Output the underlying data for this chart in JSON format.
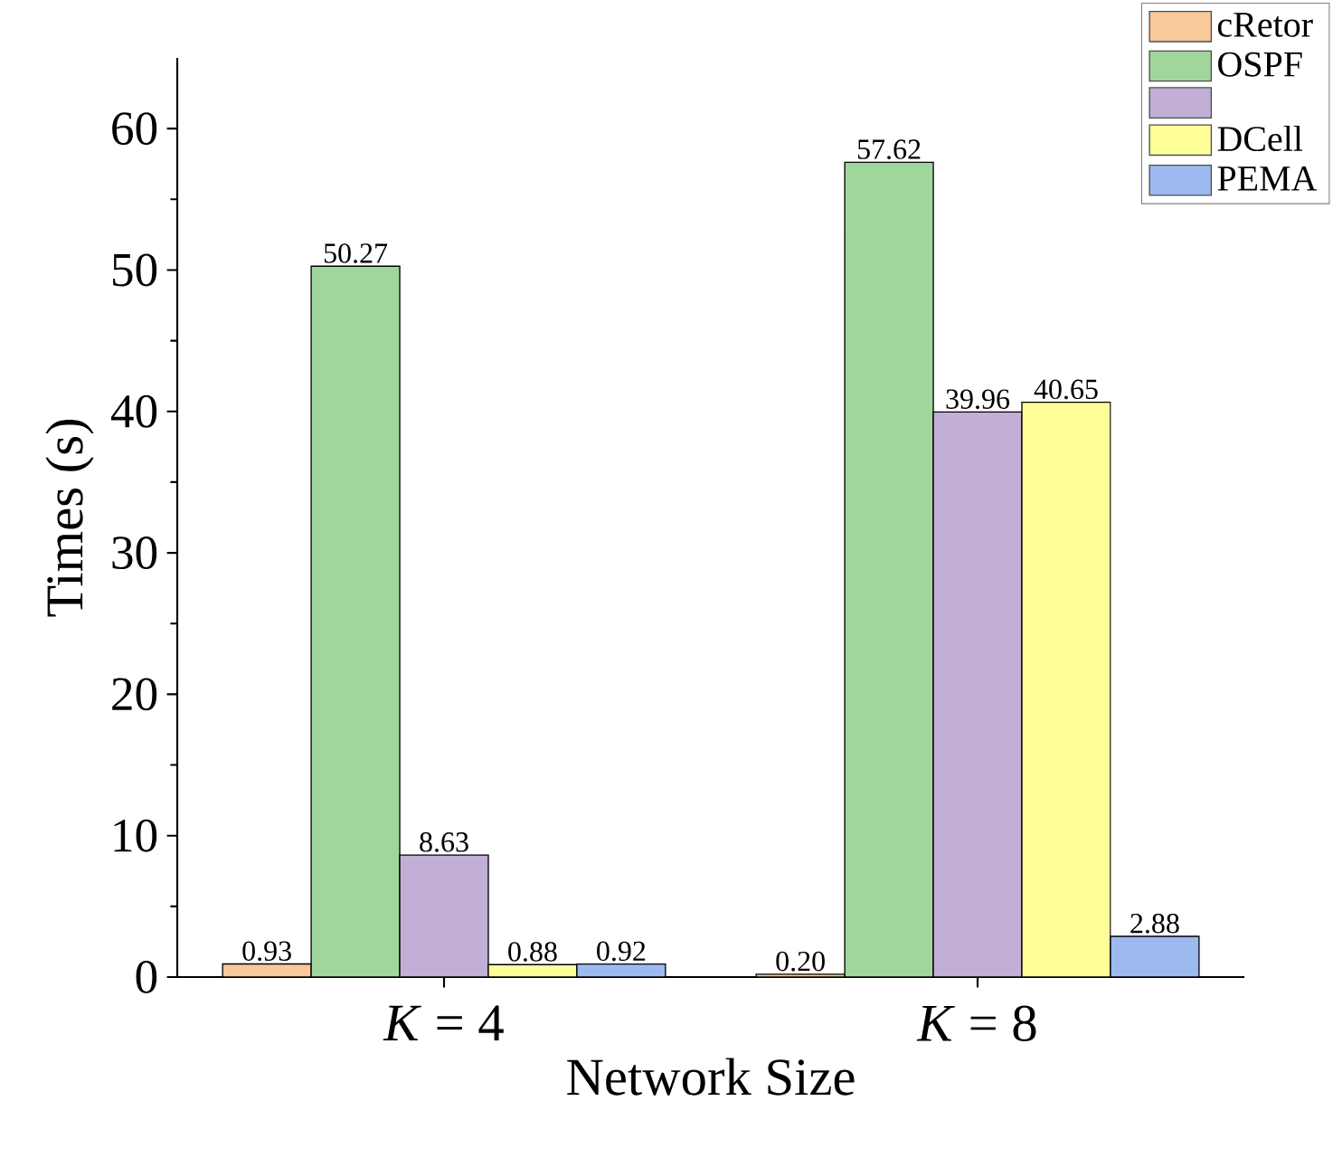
{
  "chart_data": {
    "type": "bar",
    "xlabel": "Network Size",
    "ylabel": "Times (s)",
    "categories": [
      "*K* = 4",
      "*K* = 8"
    ],
    "series": [
      {
        "name": "cRetor",
        "color": "#f9c89b",
        "values": [
          0.93,
          0.2
        ],
        "value_labels": [
          "0.93",
          "0.20"
        ]
      },
      {
        "name": "OSPF",
        "color": "#a0d69b",
        "values": [
          50.27,
          57.62
        ],
        "value_labels": [
          "50.27",
          "57.62"
        ]
      },
      {
        "color": "#c1afd6",
        "values": [
          8.63,
          39.96
        ],
        "value_labels": [
          "8.63",
          "39.96"
        ]
      },
      {
        "name": "DCell",
        "color": "#ffff99",
        "values": [
          0.88,
          40.65
        ],
        "value_labels": [
          "0.88",
          "40.65"
        ]
      },
      {
        "name": "PEMA",
        "color": "#9cbaf0",
        "values": [
          0.92,
          2.88
        ],
        "value_labels": [
          "0.92",
          "2.88"
        ]
      }
    ],
    "ylim": [
      0,
      65
    ],
    "yticks": [
      0,
      10,
      20,
      30,
      40,
      50,
      60
    ],
    "legend": "top right"
  }
}
